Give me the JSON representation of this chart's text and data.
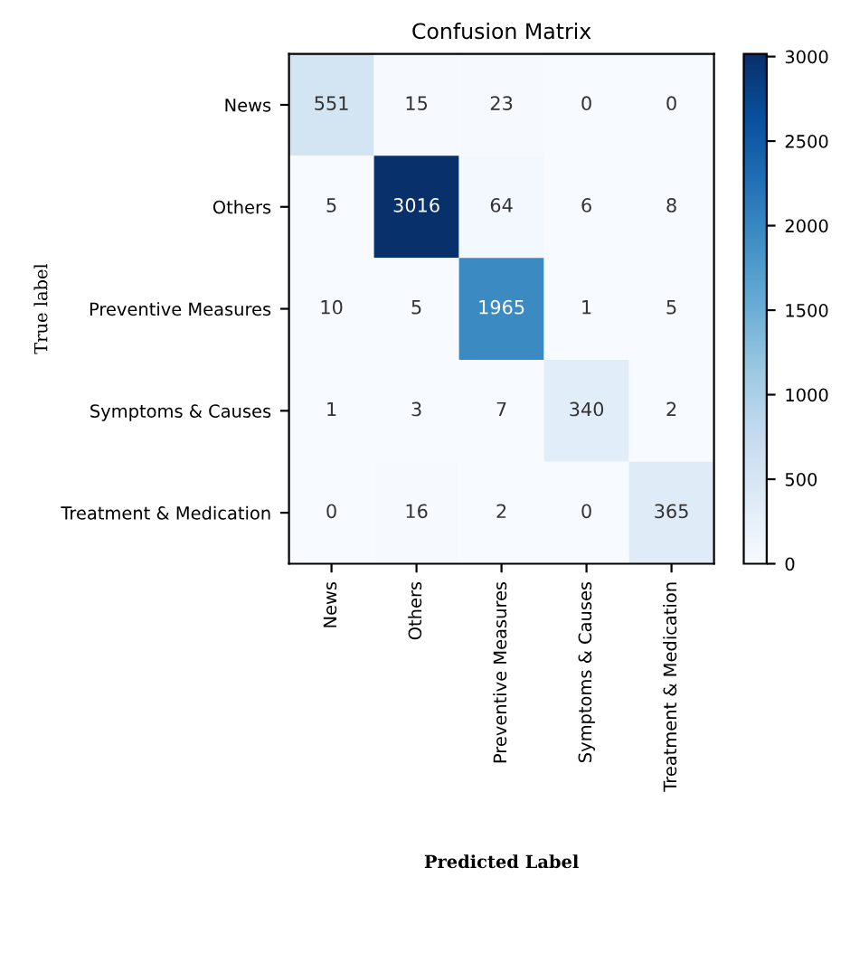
{
  "chart_data": {
    "type": "heatmap",
    "title": "Confusion Matrix",
    "xlabel": "Predicted Label",
    "ylabel": "True label",
    "categories": [
      "News",
      "Others",
      "Preventive Measures",
      "Symptoms & Causes",
      "Treatment & Medication"
    ],
    "y_categories": [
      "News",
      "Others",
      "Preventive Measures",
      "Symptoms & Causes",
      "Treatment & Medication"
    ],
    "cells": [
      [
        551,
        15,
        23,
        0,
        0
      ],
      [
        5,
        3016,
        64,
        6,
        8
      ],
      [
        10,
        5,
        1965,
        1,
        5
      ],
      [
        1,
        3,
        7,
        340,
        2
      ],
      [
        0,
        16,
        2,
        0,
        365
      ]
    ],
    "clim": [
      0,
      3016
    ],
    "cticks": [
      0,
      500,
      1000,
      1500,
      2000,
      2500,
      3000
    ],
    "data_labels": true,
    "grid": false
  }
}
